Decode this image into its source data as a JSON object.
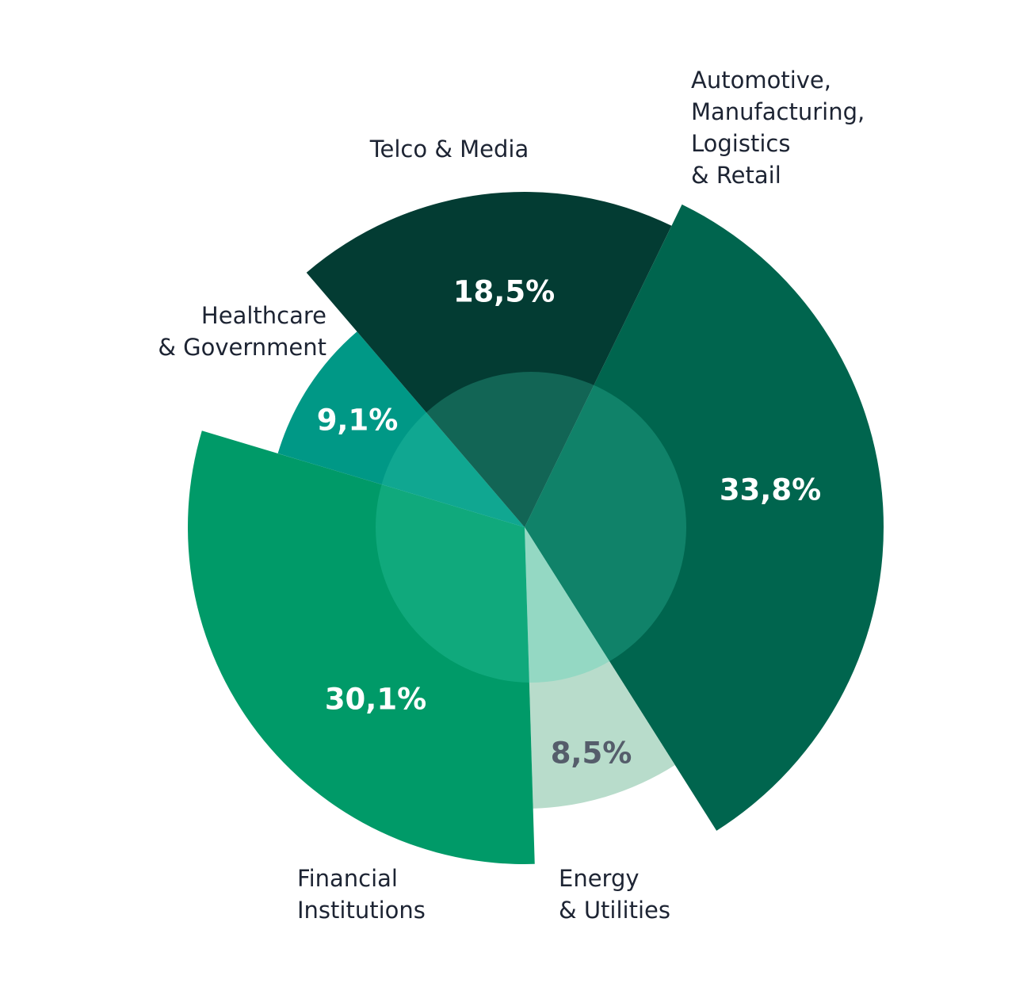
{
  "chart_data": {
    "type": "pie",
    "categories": [
      "Automotive,\nManufacturing,\nLogistics\n& Retail",
      "Energy\n& Utilities",
      "Financial\nInstitutions",
      "Healthcare\n& Government",
      "Telco & Media"
    ],
    "values": [
      33.8,
      8.5,
      30.1,
      9.1,
      18.5
    ],
    "value_labels": [
      "33,8%",
      "8,5%",
      "30,1%",
      "9,1%",
      "18,5%"
    ],
    "colors": [
      "#00654e",
      "#b8dccb",
      "#009a68",
      "#009886",
      "#033c33"
    ]
  }
}
